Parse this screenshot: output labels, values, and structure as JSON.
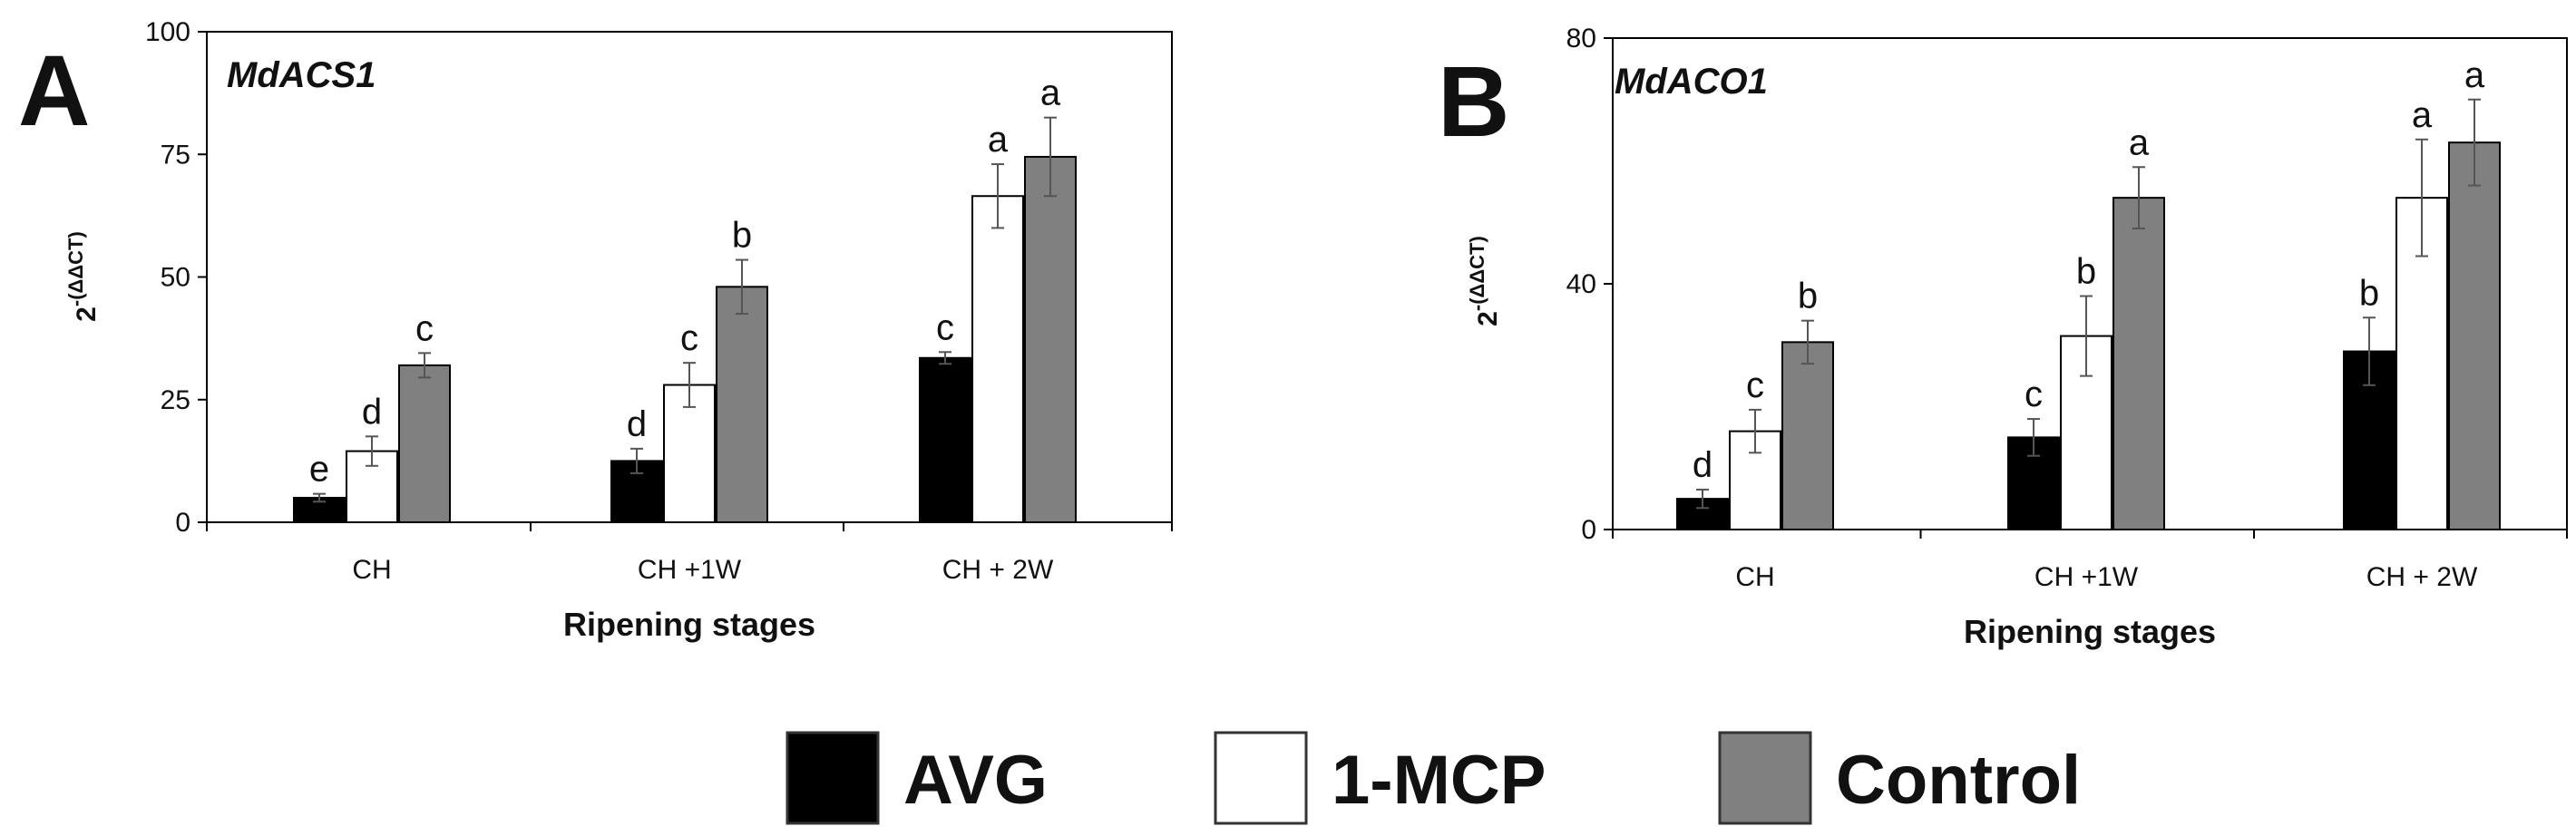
{
  "colors": {
    "AVG": "#000000",
    "1-MCP": "#ffffff",
    "Control": "#808080",
    "axis": "#000000",
    "errorbar": "#555555"
  },
  "legend": {
    "items": [
      "AVG",
      "1-MCP",
      "Control"
    ]
  },
  "chart_data": [
    {
      "type": "bar",
      "panel_label": "A",
      "title": "MdACS1",
      "xlabel": "Ripening stages",
      "ylabel_base": "2",
      "ylabel_sup": "-(ΔΔCT)",
      "ylim": [
        0,
        100
      ],
      "yticks": [
        0,
        25,
        50,
        75,
        100
      ],
      "categories": [
        "CH",
        "CH +1W",
        "CH + 2W"
      ],
      "series": [
        {
          "name": "AVG",
          "values": [
            5,
            12.5,
            33.5
          ],
          "errors": [
            0.8,
            2.5,
            1.2
          ],
          "letters": [
            "e",
            "d",
            "c"
          ]
        },
        {
          "name": "1-MCP",
          "values": [
            14.5,
            28,
            66.5
          ],
          "errors": [
            3,
            4.5,
            6.5
          ],
          "letters": [
            "d",
            "c",
            "a"
          ]
        },
        {
          "name": "Control",
          "values": [
            32,
            48,
            74.5
          ],
          "errors": [
            2.5,
            5.5,
            8
          ],
          "letters": [
            "c",
            "b",
            "a"
          ]
        }
      ]
    },
    {
      "type": "bar",
      "panel_label": "B",
      "title": "MdACO1",
      "xlabel": "Ripening stages",
      "ylabel_base": "2",
      "ylabel_sup": "-(ΔΔCT)",
      "ylim": [
        0,
        80
      ],
      "yticks": [
        0,
        40,
        80
      ],
      "categories": [
        "CH",
        "CH +1W",
        "CH + 2W"
      ],
      "series": [
        {
          "name": "AVG",
          "values": [
            5,
            15,
            29
          ],
          "errors": [
            1.5,
            3,
            5.5
          ],
          "letters": [
            "d",
            "c",
            "b"
          ]
        },
        {
          "name": "1-MCP",
          "values": [
            16,
            31.5,
            54
          ],
          "errors": [
            3.5,
            6.5,
            9.5
          ],
          "letters": [
            "c",
            "b",
            "a"
          ]
        },
        {
          "name": "Control",
          "values": [
            30.5,
            54,
            63
          ],
          "errors": [
            3.5,
            5,
            7
          ],
          "letters": [
            "b",
            "a",
            "a"
          ]
        }
      ]
    }
  ]
}
